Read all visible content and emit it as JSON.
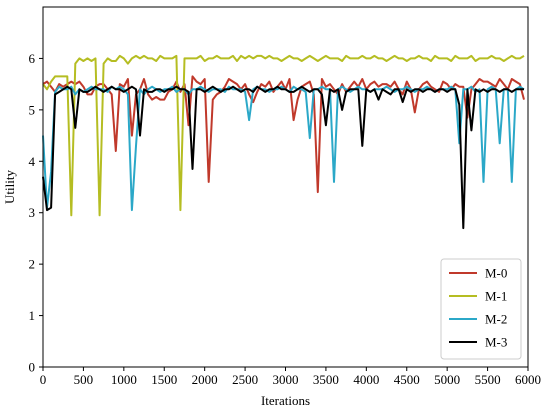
{
  "chart_data": {
    "type": "line",
    "title": "",
    "xlabel": "Iterations",
    "ylabel": "Utility",
    "xlim": [
      0,
      6000
    ],
    "ylim": [
      0,
      7
    ],
    "xticks": [
      0,
      500,
      1000,
      1500,
      2000,
      2500,
      3000,
      3500,
      4000,
      4500,
      5000,
      5500,
      6000
    ],
    "yticks": [
      0,
      1,
      2,
      3,
      4,
      5,
      6
    ],
    "grid": false,
    "legend_position": "lower-right",
    "x": [
      0,
      50,
      100,
      150,
      200,
      250,
      300,
      350,
      400,
      450,
      500,
      550,
      600,
      650,
      700,
      750,
      800,
      850,
      900,
      950,
      1000,
      1050,
      1100,
      1150,
      1200,
      1250,
      1300,
      1350,
      1400,
      1450,
      1500,
      1550,
      1600,
      1650,
      1700,
      1750,
      1800,
      1850,
      1900,
      1950,
      2000,
      2050,
      2100,
      2150,
      2200,
      2250,
      2300,
      2350,
      2400,
      2450,
      2500,
      2550,
      2600,
      2650,
      2700,
      2750,
      2800,
      2850,
      2900,
      2950,
      3000,
      3050,
      3100,
      3150,
      3200,
      3250,
      3300,
      3350,
      3400,
      3450,
      3500,
      3550,
      3600,
      3650,
      3700,
      3750,
      3800,
      3850,
      3900,
      3950,
      4000,
      4050,
      4100,
      4150,
      4200,
      4250,
      4300,
      4350,
      4400,
      4450,
      4500,
      4550,
      4600,
      4650,
      4700,
      4750,
      4800,
      4850,
      4900,
      4950,
      5000,
      5050,
      5100,
      5150,
      5200,
      5250,
      5300,
      5350,
      5400,
      5450,
      5500,
      5550,
      5600,
      5650,
      5700,
      5750,
      5800,
      5850,
      5900,
      5950
    ],
    "series": [
      {
        "name": "M-0",
        "color": "#c0392b",
        "values": [
          5.5,
          5.55,
          5.45,
          5.35,
          5.5,
          5.45,
          5.5,
          5.55,
          5.5,
          5.55,
          5.45,
          5.3,
          5.3,
          5.45,
          5.5,
          5.5,
          5.4,
          5.3,
          4.2,
          5.5,
          5.45,
          5.6,
          4.5,
          5.3,
          5.4,
          5.6,
          5.3,
          5.2,
          5.25,
          5.2,
          5.2,
          5.35,
          5.4,
          5.55,
          5.35,
          5.5,
          4.7,
          5.65,
          5.55,
          5.5,
          5.6,
          3.6,
          5.2,
          5.3,
          5.35,
          5.45,
          5.6,
          5.55,
          5.5,
          5.4,
          5.5,
          5.3,
          5.15,
          5.35,
          5.5,
          5.45,
          5.55,
          5.35,
          5.45,
          5.55,
          5.4,
          5.6,
          4.8,
          5.2,
          5.45,
          5.5,
          5.55,
          5.3,
          3.4,
          5.6,
          5.45,
          5.5,
          5.4,
          5.3,
          5.5,
          5.35,
          5.45,
          5.55,
          5.45,
          5.6,
          5.4,
          5.5,
          5.55,
          5.45,
          5.5,
          5.5,
          5.45,
          5.55,
          5.4,
          5.3,
          5.55,
          5.4,
          4.95,
          5.4,
          5.5,
          5.55,
          5.45,
          5.4,
          5.35,
          5.55,
          5.5,
          5.4,
          5.5,
          5.45,
          5.45,
          4.85,
          5.4,
          5.5,
          5.6,
          5.55,
          5.55,
          5.5,
          5.45,
          5.6,
          5.5,
          5.4,
          5.6,
          5.55,
          5.5,
          5.2
        ]
      },
      {
        "name": "M-1",
        "color": "#b5bd22",
        "values": [
          5.5,
          5.4,
          5.55,
          5.65,
          5.65,
          5.65,
          5.65,
          2.95,
          5.9,
          6.0,
          5.95,
          6.0,
          5.95,
          6.0,
          2.95,
          5.9,
          6.0,
          5.95,
          5.95,
          6.05,
          6.0,
          5.9,
          6.0,
          6.05,
          6.0,
          6.05,
          6.0,
          6.0,
          5.95,
          6.05,
          6.0,
          6.0,
          6.0,
          6.05,
          3.05,
          6.0,
          6.0,
          6.0,
          6.0,
          6.05,
          5.95,
          6.0,
          6.0,
          6.05,
          6.0,
          6.0,
          6.0,
          6.05,
          5.95,
          6.05,
          6.0,
          6.05,
          6.0,
          6.05,
          6.05,
          6.0,
          6.05,
          6.0,
          6.0,
          5.95,
          6.0,
          6.05,
          6.0,
          6.0,
          5.95,
          6.0,
          6.05,
          6.0,
          5.95,
          6.0,
          6.05,
          6.0,
          6.0,
          6.0,
          5.95,
          6.05,
          6.0,
          6.0,
          6.0,
          6.05,
          6.0,
          6.0,
          6.05,
          6.0,
          6.0,
          5.95,
          6.0,
          6.05,
          6.0,
          6.0,
          5.95,
          6.0,
          6.0,
          6.05,
          6.0,
          6.0,
          5.95,
          6.05,
          6.0,
          6.0,
          6.0,
          5.95,
          6.05,
          6.0,
          6.0,
          6.0,
          6.05,
          5.95,
          6.0,
          6.0,
          6.0,
          6.05,
          6.0,
          6.0,
          5.95,
          6.0,
          6.05,
          6.0,
          6.0,
          6.05
        ]
      },
      {
        "name": "M-2",
        "color": "#2ba8c8",
        "values": [
          4.5,
          3.1,
          3.8,
          5.35,
          5.45,
          5.4,
          5.4,
          5.45,
          5.3,
          5.4,
          5.35,
          5.4,
          5.45,
          5.4,
          5.4,
          5.4,
          5.35,
          5.45,
          5.4,
          5.45,
          5.4,
          5.3,
          3.05,
          4.3,
          5.4,
          5.3,
          5.4,
          5.45,
          5.4,
          5.35,
          5.4,
          5.4,
          5.45,
          5.35,
          5.4,
          5.4,
          5.3,
          5.4,
          5.4,
          5.45,
          5.4,
          5.35,
          5.4,
          5.4,
          5.4,
          5.35,
          5.45,
          5.4,
          5.4,
          5.4,
          5.35,
          4.8,
          5.4,
          5.45,
          5.4,
          5.4,
          5.35,
          5.4,
          5.4,
          5.45,
          5.4,
          5.35,
          5.45,
          5.4,
          5.4,
          5.35,
          4.45,
          5.4,
          5.4,
          5.45,
          5.4,
          5.4,
          3.6,
          5.4,
          5.45,
          5.4,
          5.35,
          5.4,
          5.45,
          5.4,
          5.4,
          5.35,
          5.4,
          5.4,
          5.4,
          5.45,
          5.4,
          5.35,
          5.4,
          5.4,
          5.45,
          5.4,
          5.35,
          5.4,
          5.4,
          5.45,
          5.4,
          5.35,
          5.4,
          5.4,
          5.4,
          5.45,
          5.4,
          4.35,
          5.4,
          5.4,
          5.45,
          5.35,
          5.4,
          3.6,
          5.4,
          5.45,
          5.4,
          4.35,
          5.4,
          5.4,
          3.6,
          5.4,
          5.45,
          5.4
        ]
      },
      {
        "name": "M-3",
        "color": "#000000",
        "values": [
          3.7,
          3.05,
          3.1,
          5.3,
          5.35,
          5.4,
          5.45,
          5.4,
          4.65,
          5.4,
          5.35,
          5.35,
          5.4,
          5.45,
          5.4,
          5.35,
          5.4,
          5.45,
          5.4,
          5.4,
          5.35,
          5.4,
          5.45,
          5.4,
          4.5,
          5.4,
          5.35,
          5.35,
          5.4,
          5.4,
          5.35,
          5.4,
          5.4,
          5.45,
          5.4,
          5.4,
          5.35,
          3.85,
          5.4,
          5.4,
          5.35,
          5.4,
          5.45,
          5.4,
          5.35,
          5.4,
          5.4,
          5.45,
          5.4,
          5.35,
          5.4,
          5.4,
          5.35,
          5.45,
          5.4,
          5.35,
          5.4,
          5.4,
          5.45,
          5.4,
          5.4,
          5.35,
          5.35,
          5.4,
          5.45,
          5.4,
          5.35,
          5.4,
          5.4,
          5.3,
          4.7,
          5.4,
          5.35,
          5.4,
          5.0,
          5.35,
          5.4,
          5.4,
          5.4,
          4.3,
          5.4,
          5.35,
          5.4,
          5.2,
          5.4,
          5.35,
          5.3,
          5.4,
          5.4,
          5.15,
          5.4,
          5.35,
          5.4,
          5.4,
          5.35,
          5.4,
          5.4,
          5.35,
          5.4,
          5.4,
          5.35,
          5.4,
          5.4,
          5.1,
          2.7,
          5.4,
          4.6,
          5.4,
          5.35,
          5.4,
          5.35,
          5.4,
          5.4,
          5.35,
          5.4,
          5.4,
          5.35,
          5.4,
          5.4,
          5.4
        ]
      }
    ]
  }
}
